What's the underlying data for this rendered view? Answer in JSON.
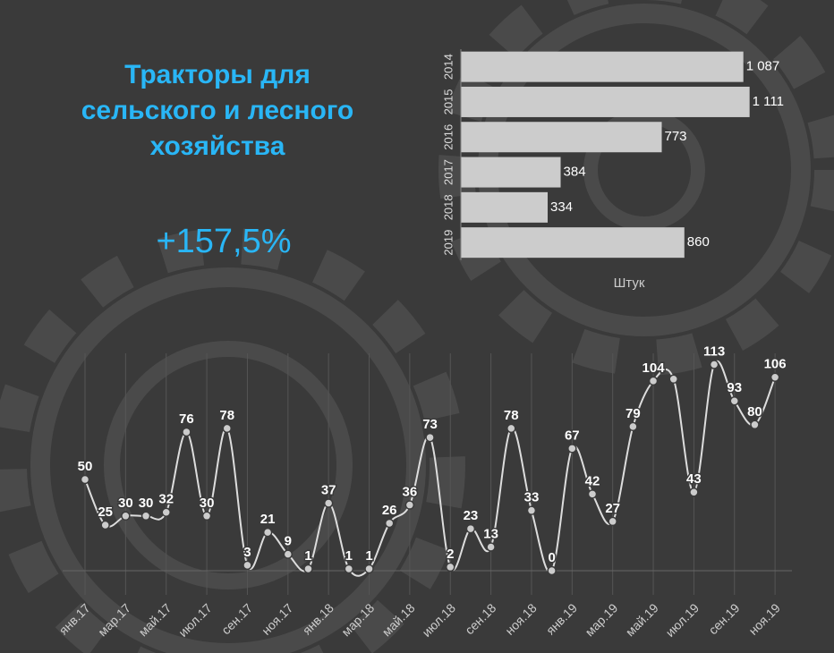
{
  "title": "Тракторы для сельского и лесного хозяйства",
  "highlight": "+157,5%",
  "chart_data": [
    {
      "type": "hbar",
      "categories": [
        "2014",
        "2015",
        "2016",
        "2017",
        "2018",
        "2019"
      ],
      "values": [
        1087,
        1111,
        773,
        384,
        334,
        860
      ],
      "value_labels": [
        "1 087",
        "1 111",
        "773",
        "384",
        "334",
        "860"
      ],
      "color": "#cccccc",
      "xlabel": "Штук",
      "xlim": [
        0,
        1150
      ]
    },
    {
      "type": "line",
      "categories": [
        "янв.17",
        null,
        "мар.17",
        null,
        "май.17",
        null,
        "июл.17",
        null,
        "сен.17",
        null,
        "ноя.17",
        null,
        "янв.18",
        null,
        "мар.18",
        null,
        "май.18",
        null,
        "июл.18",
        null,
        "сен.18",
        null,
        "ноя.18",
        null,
        "янв.19",
        null,
        "мар.19",
        null,
        "май.19",
        null,
        "июл.19",
        null,
        "сен.19",
        null,
        "ноя.19"
      ],
      "values": [
        50,
        25,
        30,
        30,
        32,
        76,
        30,
        78,
        3,
        21,
        9,
        1,
        37,
        1,
        1,
        26,
        36,
        73,
        2,
        23,
        13,
        78,
        33,
        0,
        67,
        42,
        27,
        79,
        104,
        105,
        43,
        113,
        93,
        80,
        106
      ],
      "value_labels": [
        "50",
        "25",
        "30",
        "30",
        "32",
        "76",
        "30",
        "78",
        "3",
        "21",
        "9",
        "1",
        "37",
        "1",
        "1",
        "26",
        "36",
        "73",
        "2",
        "23",
        "13",
        "78",
        "33",
        "0",
        "67",
        "42",
        "27",
        "79",
        "104",
        null,
        "43",
        "113",
        "93",
        "80",
        "106"
      ],
      "color": "#dddddd",
      "ylim": [
        0,
        120
      ],
      "grid": true
    }
  ]
}
